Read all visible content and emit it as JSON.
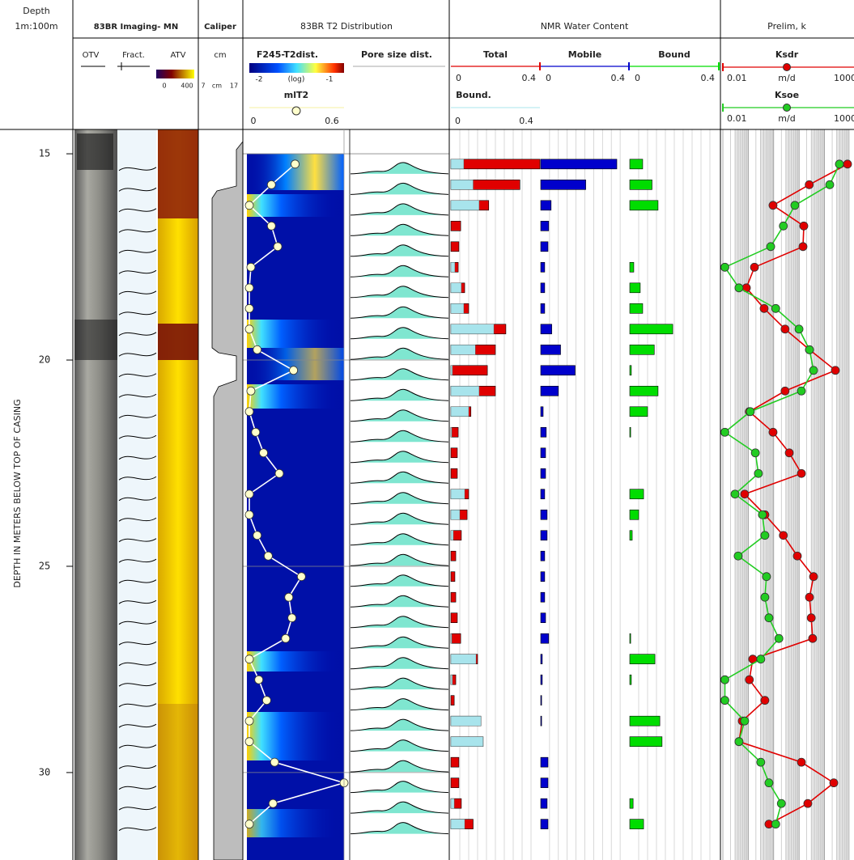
{
  "chart_data": {
    "type": "well-log",
    "depth_title": "Depth",
    "depth_scale": "1m:100m",
    "y_label": "DEPTH IN METERS BELOW TOP OF CASING",
    "ylim": [
      14.41,
      32.12
    ],
    "yticks": [
      15,
      20,
      25,
      30
    ],
    "y": [
      15.25,
      15.75,
      16.25,
      16.75,
      17.25,
      17.75,
      18.25,
      18.75,
      19.25,
      19.75,
      20.25,
      20.75,
      21.25,
      21.75,
      22.25,
      22.75,
      23.25,
      23.75,
      24.25,
      24.75,
      25.25,
      25.75,
      26.25,
      26.75,
      27.25,
      27.75,
      28.25,
      28.75,
      29.25,
      29.75,
      30.25,
      30.75,
      31.25
    ],
    "imaging": {
      "title": "83BR Imaging- MN",
      "columns": [
        "OTV",
        "Fract.",
        "ATV"
      ],
      "colorbar_lim": [
        0,
        400
      ]
    },
    "caliper": {
      "title": "Caliper",
      "unit": "cm",
      "xlim": [
        7,
        17
      ]
    },
    "t2": {
      "title": "83BR T2 Distribution",
      "heatmap_label": "F245-T2dist.",
      "heatmap_lim": [
        -2,
        -1
      ],
      "heatmap_scale": "(log)",
      "pore_label": "Pore size dist.",
      "xlim": [
        0,
        0.6
      ],
      "series": [
        {
          "name": "mlT2",
          "color": "#ffffff",
          "values": [
            0.29,
            0.14,
            0.0,
            0.14,
            0.18,
            0.01,
            0.0,
            0.0,
            0.0,
            0.05,
            0.28,
            0.01,
            0.0,
            0.04,
            0.09,
            0.19,
            0.0,
            0.0,
            0.05,
            0.12,
            0.33,
            0.25,
            0.27,
            0.23,
            0.0,
            0.06,
            0.11,
            0.0,
            0.0,
            0.16,
            0.6,
            0.15,
            0.0
          ]
        }
      ]
    },
    "nmr": {
      "title": "NMR Water Content",
      "xlim": [
        0,
        0.4
      ],
      "overlay_label": "Bound.",
      "overlay_color": "#a8e4ec",
      "series": [
        {
          "name": "Total",
          "color": "#e00000",
          "values": [
            0.4,
            0.31,
            0.17,
            0.044,
            0.036,
            0.033,
            0.062,
            0.08,
            0.247,
            0.2,
            0.164,
            0.2,
            0.09,
            0.033,
            0.029,
            0.029,
            0.08,
            0.073,
            0.047,
            0.022,
            0.018,
            0.022,
            0.029,
            0.044,
            0.12,
            0.022,
            0.015,
            0.135,
            0.145,
            0.036,
            0.036,
            0.047,
            0.1
          ]
        },
        {
          "name": "Mobile",
          "color": "#0000cc",
          "values": [
            0.345,
            0.204,
            0.047,
            0.036,
            0.033,
            0.018,
            0.018,
            0.018,
            0.05,
            0.09,
            0.156,
            0.08,
            0.011,
            0.025,
            0.022,
            0.022,
            0.018,
            0.029,
            0.029,
            0.018,
            0.018,
            0.018,
            0.022,
            0.036,
            0.007,
            0.007,
            0.004,
            0.004,
            0,
            0.033,
            0.033,
            0.029,
            0.033
          ]
        },
        {
          "name": "Bound",
          "color": "#00dd00",
          "values": [
            0.058,
            0.1,
            0.127,
            0,
            0,
            0.018,
            0.047,
            0.058,
            0.193,
            0.11,
            0.007,
            0.127,
            0.08,
            0.004,
            0,
            0,
            0.062,
            0.04,
            0.011,
            0,
            0,
            0,
            0,
            0.004,
            0.113,
            0.007,
            0,
            0.135,
            0.145,
            0,
            0,
            0.015,
            0.062
          ]
        }
      ]
    },
    "perm": {
      "title": "Prelim, k",
      "unit": "m/d",
      "xlim": [
        0.01,
        1000
      ],
      "log": true,
      "series": [
        {
          "name": "Ksdr",
          "color": "#e00000",
          "values": [
            802,
            25,
            0.94,
            15.3,
            14.2,
            0.175,
            0.084,
            0.42,
            2.8,
            25.6,
            267,
            2.8,
            0.11,
            0.94,
            4.1,
            12.3,
            0.072,
            0.45,
            2.4,
            8.5,
            37,
            25.6,
            30,
            34,
            0.15,
            0.11,
            0.45,
            0.058,
            0.043,
            12.3,
            231,
            22,
            0.65
          ]
        },
        {
          "name": "Ksoe",
          "color": "#22cc22",
          "values": [
            385,
            160,
            6.8,
            2.4,
            0.76,
            0.012,
            0.043,
            1.2,
            9.9,
            25.6,
            37,
            12.3,
            0.12,
            0.012,
            0.19,
            0.25,
            0.03,
            0.36,
            0.45,
            0.04,
            0.52,
            0.45,
            0.65,
            1.6,
            0.31,
            0.012,
            0.012,
            0.072,
            0.043,
            0.31,
            0.65,
            2.0,
            1.2
          ]
        }
      ]
    }
  }
}
